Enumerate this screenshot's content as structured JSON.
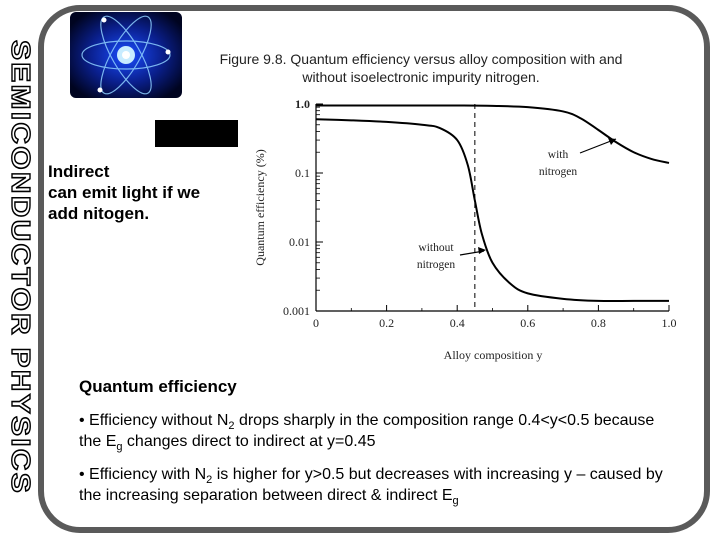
{
  "side_title": "SEMICONDUCTOR PHYSICS",
  "figure_caption": {
    "line1": "Figure 9.8.  Quantum efficiency versus alloy composition with and",
    "line2": "without isoelectronic impurity nitrogen."
  },
  "indirect_note": {
    "line1": "Indirect",
    "line2": "can emit light  if we",
    "line3": "add nitogen."
  },
  "section_heading": "Quantum efficiency",
  "bullets": [
    {
      "prefix": "• Efficiency without N",
      "sub1": "2",
      "mid": " drops sharply in the composition range 0.4<y<0.5 because the E",
      "sub2": "g",
      "suffix": " changes direct to indirect at y=0.45"
    },
    {
      "prefix": "• Efficiency with N",
      "sub1": "2",
      "mid": " is higher for y>0.5 but decreases with increasing y – caused by the increasing separation between direct & indirect E",
      "sub2": "g",
      "suffix": ""
    }
  ],
  "colors": {
    "frame": "#5a5a5a",
    "curve": "#000000",
    "side_title_stroke": "#000000"
  },
  "chart_data": {
    "type": "line",
    "xlabel": "Alloy composition y",
    "ylabel": "Quantum efficiency (%)",
    "x_scale": "linear",
    "y_scale": "log",
    "xlim": [
      0,
      1.0
    ],
    "ylim": [
      0.001,
      1.0
    ],
    "x_ticks": [
      "0",
      "0.2",
      "0.4",
      "0.6",
      "0.8",
      "1.0"
    ],
    "x_tick_values": [
      0,
      0.2,
      0.4,
      0.6,
      0.8,
      1.0
    ],
    "y_ticks": [
      "1.0",
      "0.1",
      "0.01",
      "0.001"
    ],
    "y_tick_values": [
      1.0,
      0.1,
      0.01,
      0.001
    ],
    "vertical_marker_x": 0.45,
    "series": [
      {
        "name": "without nitrogen",
        "x": [
          0,
          0.1,
          0.2,
          0.3,
          0.35,
          0.4,
          0.43,
          0.45,
          0.47,
          0.5,
          0.55,
          0.6,
          0.7,
          0.8,
          0.9,
          1.0
        ],
        "values": [
          0.6,
          0.58,
          0.55,
          0.5,
          0.45,
          0.3,
          0.13,
          0.04,
          0.013,
          0.005,
          0.0025,
          0.0018,
          0.0015,
          0.0014,
          0.0014,
          0.0014
        ]
      },
      {
        "name": "with nitrogen",
        "x": [
          0,
          0.1,
          0.2,
          0.3,
          0.4,
          0.5,
          0.6,
          0.7,
          0.75,
          0.8,
          0.85,
          0.9,
          0.95,
          1.0
        ],
        "values": [
          0.95,
          0.95,
          0.95,
          0.95,
          0.95,
          0.94,
          0.9,
          0.78,
          0.62,
          0.42,
          0.28,
          0.2,
          0.16,
          0.14
        ]
      }
    ],
    "annotations": [
      {
        "line1": "with",
        "line2": "nitrogen"
      },
      {
        "line1": "without",
        "line2": "nitrogen"
      }
    ]
  }
}
